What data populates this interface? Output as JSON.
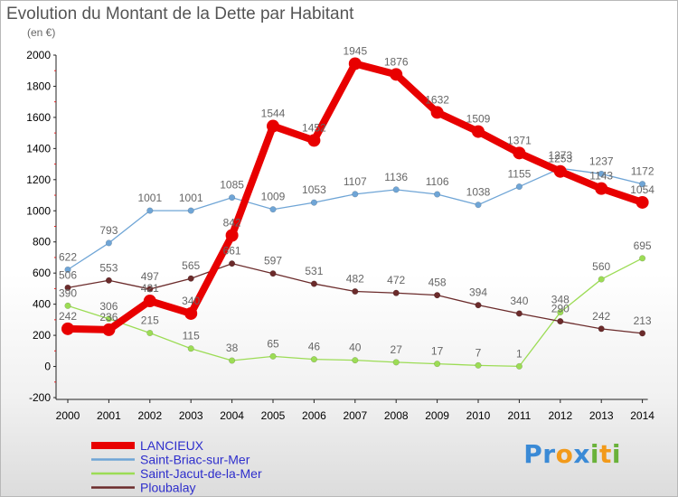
{
  "header": {
    "title": "Evolution du Montant de la Dette par Habitant",
    "unit": "(en €)"
  },
  "logo": {
    "letters": [
      {
        "ch": "P",
        "color": "#3a8ad6"
      },
      {
        "ch": "r",
        "color": "#3a8ad6"
      },
      {
        "ch": "o",
        "color": "#f29a1a"
      },
      {
        "ch": "x",
        "color": "#3a8ad6"
      },
      {
        "ch": "i",
        "color": "#6ab23a"
      },
      {
        "ch": "t",
        "color": "#f29a1a"
      },
      {
        "ch": "i",
        "color": "#6ab23a"
      }
    ]
  },
  "chart_data": {
    "type": "line",
    "title": "Evolution du Montant de la Dette par Habitant",
    "subtitle": "(en €)",
    "x": [
      "2000",
      "2001",
      "2002",
      "2003",
      "2004",
      "2005",
      "2006",
      "2007",
      "2008",
      "2009",
      "2010",
      "2011",
      "2012",
      "2013",
      "2014"
    ],
    "ylim": [
      -200,
      2000
    ],
    "yticks": [
      -200,
      0,
      200,
      400,
      600,
      800,
      1000,
      1200,
      1400,
      1600,
      1800,
      2000
    ],
    "grid": false,
    "legend_position": "bottom-left",
    "series": [
      {
        "name": "LANCIEUX",
        "color": "#e80000",
        "highlight": true,
        "values": [
          242,
          236,
          421,
          340,
          842,
          1544,
          1452,
          1945,
          1876,
          1632,
          1509,
          1371,
          1253,
          1143,
          1054
        ]
      },
      {
        "name": "Saint-Briac-sur-Mer",
        "color": "#6fa5d6",
        "highlight": false,
        "values": [
          622,
          793,
          1001,
          1001,
          1085,
          1009,
          1053,
          1107,
          1136,
          1106,
          1038,
          1155,
          1273,
          1237,
          1172
        ]
      },
      {
        "name": "Saint-Jacut-de-la-Mer",
        "color": "#9cdc55",
        "highlight": false,
        "values": [
          390,
          306,
          215,
          115,
          38,
          65,
          46,
          40,
          27,
          17,
          7,
          1,
          348,
          560,
          695
        ]
      },
      {
        "name": "Ploubalay",
        "color": "#6b2b2b",
        "highlight": false,
        "values": [
          506,
          553,
          497,
          565,
          661,
          597,
          531,
          482,
          472,
          458,
          394,
          340,
          290,
          242,
          213
        ]
      }
    ]
  }
}
